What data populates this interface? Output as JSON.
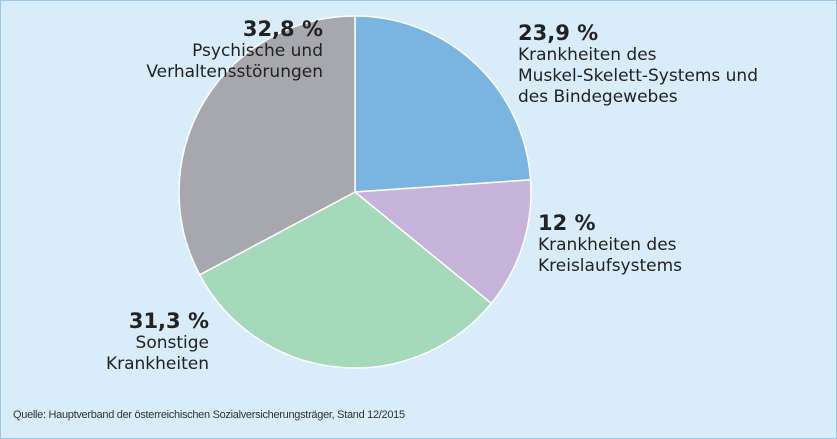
{
  "chart_data": {
    "type": "pie",
    "categories": [
      "Krankheiten des\nMuskel-Skelett-Systems und\ndes Bindegewebes",
      "Krankheiten des\nKreislaufsystems",
      "Sonstige\nKrankheiten",
      "Psychische und\nVerhaltensstörungen"
    ],
    "values": [
      23.9,
      12,
      31.3,
      32.8
    ],
    "value_labels": [
      "23,9 %",
      "12 %",
      "31,3 %",
      "32,8 %"
    ],
    "colors": [
      "#7ab4e1",
      "#c6b4da",
      "#a4dab9",
      "#a7a8ad"
    ],
    "source": "Quelle: Hauptverband der österreichischen Sozialversicherungsträger, Stand 12/2015"
  }
}
